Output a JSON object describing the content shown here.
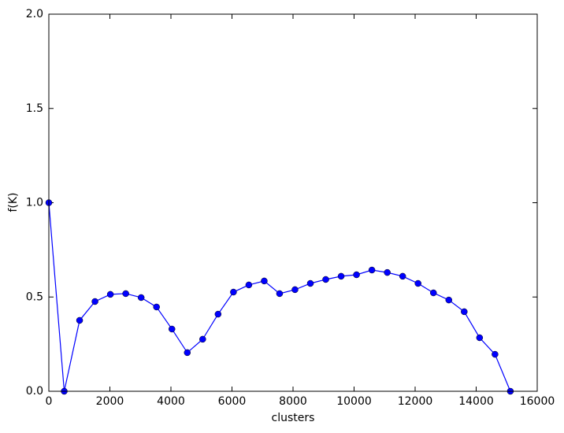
{
  "chart_data": {
    "type": "line",
    "x_label": "clusters",
    "y_label": "f(K)",
    "x": [
      0,
      504,
      1008,
      1512,
      2016,
      2520,
      3024,
      3528,
      4032,
      4536,
      5040,
      5544,
      6048,
      6552,
      7056,
      7560,
      8064,
      8568,
      9072,
      9576,
      10080,
      10584,
      11088,
      11592,
      12096,
      12600,
      13104,
      13608,
      14112,
      14616,
      15120
    ],
    "series": [
      {
        "color": "#0000ff",
        "values": [
          1.0,
          0,
          0.376,
          0.476,
          0.514,
          0.518,
          0.497,
          0.447,
          0.33,
          0.205,
          0.276,
          0.409,
          0.526,
          0.564,
          0.585,
          0.518,
          0.539,
          0.572,
          0.593,
          0.61,
          0.618,
          0.643,
          0.63,
          0.61,
          0.572,
          0.522,
          0.484,
          0.422,
          0.284,
          0.196,
          0
        ]
      }
    ],
    "xlim": [
      0,
      16000
    ],
    "xticks": [
      0,
      2000,
      4000,
      6000,
      8000,
      10000,
      12000,
      14000,
      16000
    ],
    "ylim": [
      0,
      2
    ],
    "yticks": [
      {
        "value": 0,
        "label": "0.0"
      },
      0.5,
      {
        "value": 1,
        "label": "1.0"
      },
      1.5,
      {
        "value": 2,
        "label": "2.0"
      }
    ],
    "marker": "o"
  }
}
